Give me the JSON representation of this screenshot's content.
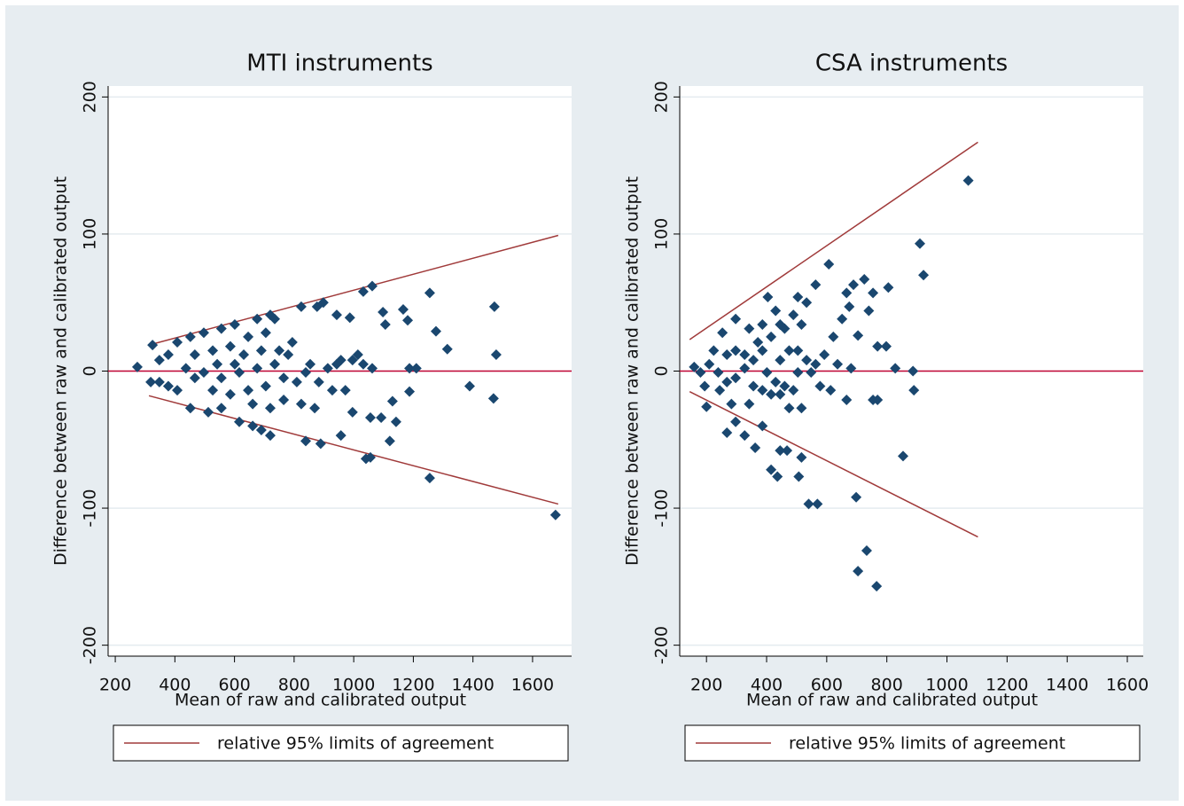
{
  "chart_data": [
    {
      "type": "scatter",
      "title": "MTI instruments",
      "xlabel": "Mean of raw and calibrated output",
      "ylabel": "Difference between raw and calibrated output",
      "xlim": [
        176,
        1731
      ],
      "ylim": [
        -208,
        208
      ],
      "xticks": [
        200,
        400,
        600,
        800,
        1000,
        1200,
        1400,
        1600
      ],
      "yticks": [
        -200,
        -100,
        0,
        100,
        200
      ],
      "grid": true,
      "legend_position": "bottom",
      "points": {
        "color": "#1a476f",
        "x": [
          274,
          325,
          1677,
          1255,
          1255,
          1472,
          1478,
          1469,
          1389,
          1276,
          1314,
          1166,
          1181,
          1187,
          1210,
          1187,
          1130,
          1121,
          1142,
          1098,
          1106,
          1032,
          1062,
          1041,
          1056,
          1056,
          1092,
          987,
          996,
          1014,
          1032,
          1062,
          996,
          957,
          889,
          839,
          898,
          877,
          824,
          943,
          794,
          839,
          883,
          928,
          972,
          720,
          690,
          661,
          616,
          556,
          512,
          452,
          408,
          378,
          348,
          319,
          348,
          378,
          408,
          452,
          497,
          556,
          601,
          676,
          720,
          735,
          705,
          646,
          586,
          527,
          467,
          437,
          497,
          556,
          616,
          676,
          735,
          765,
          705,
          646,
          586,
          527,
          467,
          631,
          690,
          750,
          780,
          809,
          854,
          913,
          957,
          765,
          824,
          869,
          943,
          601,
          542,
          661,
          720
        ],
        "values": [
          3,
          19,
          -105,
          57,
          -78,
          47,
          12,
          -20,
          -11,
          29,
          16,
          45,
          37,
          2,
          2,
          -15,
          -22,
          -51,
          -37,
          43,
          34,
          58,
          62,
          -64,
          -63,
          -34,
          -34,
          39,
          8,
          12,
          5,
          2,
          -30,
          -47,
          -53,
          -51,
          50,
          47,
          47,
          41,
          21,
          -1,
          -8,
          -14,
          -14,
          -47,
          -43,
          -40,
          -37,
          -27,
          -30,
          -27,
          -14,
          -11,
          -8,
          -8,
          8,
          12,
          21,
          25,
          28,
          31,
          34,
          38,
          41,
          38,
          28,
          25,
          18,
          15,
          12,
          2,
          -1,
          -5,
          -1,
          2,
          5,
          -5,
          -11,
          -14,
          -17,
          -14,
          -5,
          12,
          15,
          15,
          12,
          -8,
          5,
          2,
          8,
          -21,
          -24,
          -27,
          5,
          5,
          5,
          -24,
          -27
        ]
      },
      "reference_line": {
        "value": 0,
        "color": "#c10534"
      },
      "limits": {
        "name": "relative 95% limits of agreement",
        "color": "#a03a3a",
        "upper": {
          "x": [
            313,
            1686
          ],
          "values": [
            19,
            99
          ]
        },
        "lower": {
          "x": [
            313,
            1686
          ],
          "values": [
            -18,
            -97
          ]
        }
      }
    },
    {
      "type": "scatter",
      "title": "CSA instruments",
      "xlabel": "Mean of raw and calibrated output",
      "ylabel": "Difference between raw and calibrated output",
      "xlim": [
        111,
        1653
      ],
      "ylim": [
        -208,
        208
      ],
      "xticks": [
        200,
        400,
        600,
        800,
        1000,
        1200,
        1400,
        1600
      ],
      "yticks": [
        -200,
        -100,
        0,
        100,
        200
      ],
      "grid": true,
      "legend_position": "bottom",
      "points": {
        "color": "#1a476f",
        "x": [
          159,
          200,
          268,
          297,
          327,
          362,
          386,
          415,
          436,
          445,
          468,
          507,
          516,
          540,
          569,
          698,
          704,
          733,
          766,
          854,
          890,
          887,
          828,
          910,
          922,
          1071,
          607,
          563,
          666,
          689,
          725,
          805,
          754,
          740,
          769,
          798,
          704,
          651,
          675,
          622,
          592,
          636,
          681,
          578,
          613,
          666,
          754,
          769,
          504,
          533,
          489,
          516,
          404,
          430,
          460,
          415,
          386,
          356,
          327,
          297,
          268,
          239,
          209,
          180,
          194,
          224,
          253,
          297,
          342,
          371,
          401,
          430,
          460,
          489,
          475,
          445,
          415,
          386,
          356,
          327,
          297,
          268,
          504,
          533,
          548,
          504,
          475,
          516,
          563,
          445,
          244,
          283,
          342,
          386,
          445
        ],
        "values": [
          3,
          -26,
          -45,
          -37,
          -47,
          -56,
          -40,
          -72,
          -77,
          -58,
          -58,
          -77,
          -63,
          -97,
          -97,
          -92,
          -146,
          -131,
          -157,
          -62,
          -14,
          0,
          2,
          93,
          70,
          139,
          78,
          63,
          57,
          63,
          67,
          61,
          57,
          44,
          18,
          18,
          26,
          38,
          47,
          25,
          12,
          5,
          2,
          -11,
          -14,
          -21,
          -21,
          -21,
          54,
          50,
          41,
          34,
          54,
          44,
          31,
          25,
          15,
          8,
          2,
          -5,
          -8,
          -1,
          5,
          -1,
          -11,
          15,
          28,
          38,
          31,
          21,
          -1,
          -8,
          -11,
          -14,
          -27,
          -17,
          -17,
          -14,
          -11,
          12,
          15,
          12,
          15,
          8,
          -1,
          -1,
          15,
          -27,
          5,
          8,
          -14,
          -24,
          -24,
          34,
          34
        ]
      },
      "reference_line": {
        "value": 0,
        "color": "#c10534"
      },
      "limits": {
        "name": "relative 95% limits of agreement",
        "color": "#a03a3a",
        "upper": {
          "x": [
            144,
            1103
          ],
          "values": [
            23,
            167
          ]
        },
        "lower": {
          "x": [
            144,
            1103
          ],
          "values": [
            -15,
            -121
          ]
        }
      }
    }
  ]
}
